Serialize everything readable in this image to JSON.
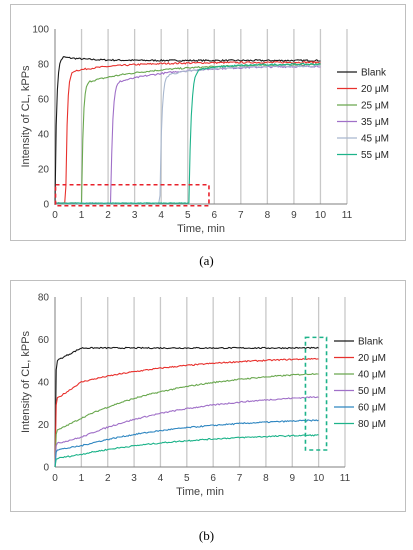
{
  "chart_data": [
    {
      "type": "line",
      "panel_label": "(a)",
      "xlabel": "Time, min",
      "ylabel": "Intensity of CL, kPPs",
      "xlim": [
        0,
        11
      ],
      "ylim": [
        0,
        100
      ],
      "x_ticks": [
        0,
        1,
        2,
        3,
        4,
        5,
        6,
        7,
        8,
        9,
        10,
        11
      ],
      "y_ticks": [
        0,
        20,
        40,
        60,
        80,
        100
      ],
      "grid": "vertical",
      "legend_position": "right",
      "highlight": {
        "x": [
          0.02,
          5.8
        ],
        "y": [
          -1,
          11
        ],
        "color": "#e8212b"
      },
      "series": [
        {
          "name": "Blank",
          "color": "#1a1a1a",
          "lag": 0.0,
          "steep": 0.06,
          "plateau": 84,
          "settle": 0.9,
          "end": 82
        },
        {
          "name": "20 μM",
          "color": "#e8312d",
          "lag": 0.4,
          "steep": 0.06,
          "plateau": 76,
          "settle": 1.8,
          "end": 81
        },
        {
          "name": "25 μM",
          "color": "#6aa84f",
          "lag": 1.0,
          "steep": 0.06,
          "plateau": 70,
          "settle": 2.5,
          "end": 80
        },
        {
          "name": "35 μM",
          "color": "#a070c8",
          "lag": 2.1,
          "steep": 0.07,
          "plateau": 70,
          "settle": 2.2,
          "end": 79
        },
        {
          "name": "45 μM",
          "color": "#a9b8cf",
          "lag": 3.95,
          "steep": 0.07,
          "plateau": 74,
          "settle": 1.5,
          "end": 79
        },
        {
          "name": "55 μM",
          "color": "#1db38a",
          "lag": 5.05,
          "steep": 0.08,
          "plateau": 77,
          "settle": 1.2,
          "end": 80
        }
      ]
    },
    {
      "type": "line",
      "panel_label": "(b)",
      "xlabel": "Time, min",
      "ylabel": "Intensity of CL, kPPs",
      "xlim": [
        0,
        11
      ],
      "ylim": [
        0,
        80
      ],
      "x_ticks": [
        0,
        1,
        2,
        3,
        4,
        5,
        6,
        7,
        8,
        9,
        10,
        11
      ],
      "y_ticks": [
        0,
        20,
        40,
        60,
        80
      ],
      "grid": "vertical",
      "legend_position": "right",
      "highlight": {
        "x": [
          9.5,
          10.3
        ],
        "y": [
          8,
          61
        ],
        "color": "#1db38a"
      },
      "series": [
        {
          "name": "Blank",
          "color": "#1a1a1a",
          "y0": 50,
          "y1": 56,
          "y10": 56
        },
        {
          "name": "20 μM",
          "color": "#e8312d",
          "y0": 32,
          "y1": 40,
          "y10": 51
        },
        {
          "name": "40 μM",
          "color": "#6aa84f",
          "y0": 17,
          "y1": 23,
          "y10": 44
        },
        {
          "name": "50 μM",
          "color": "#a070c8",
          "y0": 11,
          "y1": 14,
          "y10": 33
        },
        {
          "name": "60 μM",
          "color": "#2e86c1",
          "y0": 8,
          "y1": 10,
          "y10": 22
        },
        {
          "name": "80 μM",
          "color": "#1db38a",
          "y0": 4,
          "y1": 6,
          "y10": 15
        }
      ]
    }
  ]
}
